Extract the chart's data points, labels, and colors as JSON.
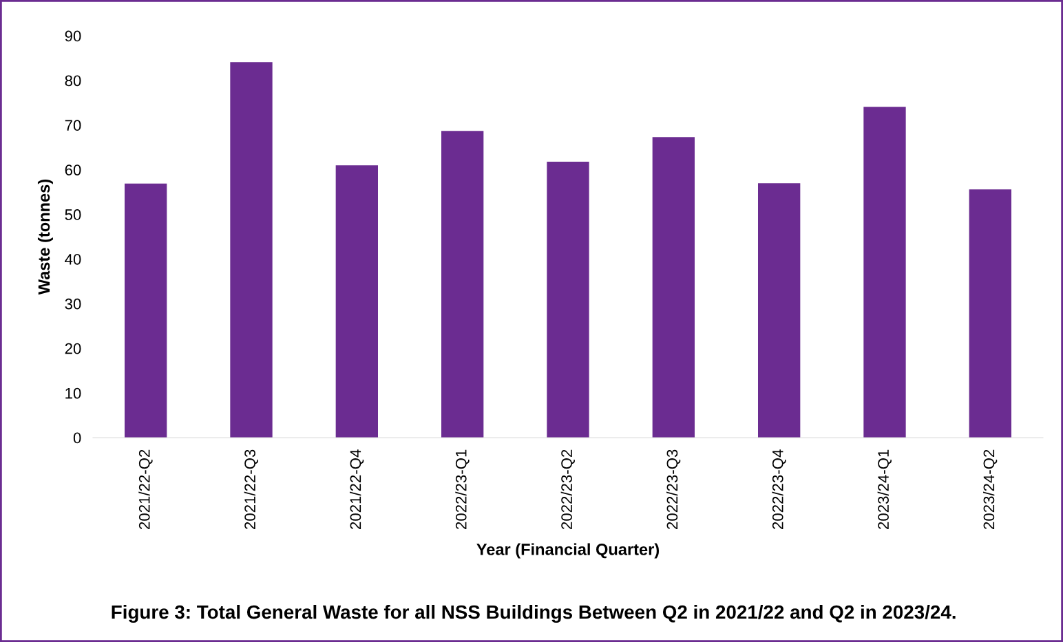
{
  "chart_data": {
    "type": "bar",
    "xlabel": "Year (Financial Quarter)",
    "ylabel": "Waste (tonnes)",
    "categories": [
      "2021/22-Q2",
      "2021/22-Q3",
      "2021/22-Q4",
      "2022/23-Q1",
      "2022/23-Q2",
      "2022/23-Q3",
      "2022/23-Q4",
      "2023/24-Q1",
      "2023/24-Q2"
    ],
    "values": [
      56.9,
      84.1,
      61.0,
      68.7,
      61.8,
      67.3,
      57.0,
      74.1,
      55.6
    ],
    "color": "#6b2c91",
    "ylim": [
      0,
      90
    ],
    "yticks": [
      0,
      10,
      20,
      30,
      40,
      50,
      60,
      70,
      80,
      90
    ],
    "grid": false,
    "annotations": [
      "Figure 3: Total General Waste for all NSS Buildings Between Q2 in 2021/22 and Q2 in 2023/24."
    ]
  }
}
